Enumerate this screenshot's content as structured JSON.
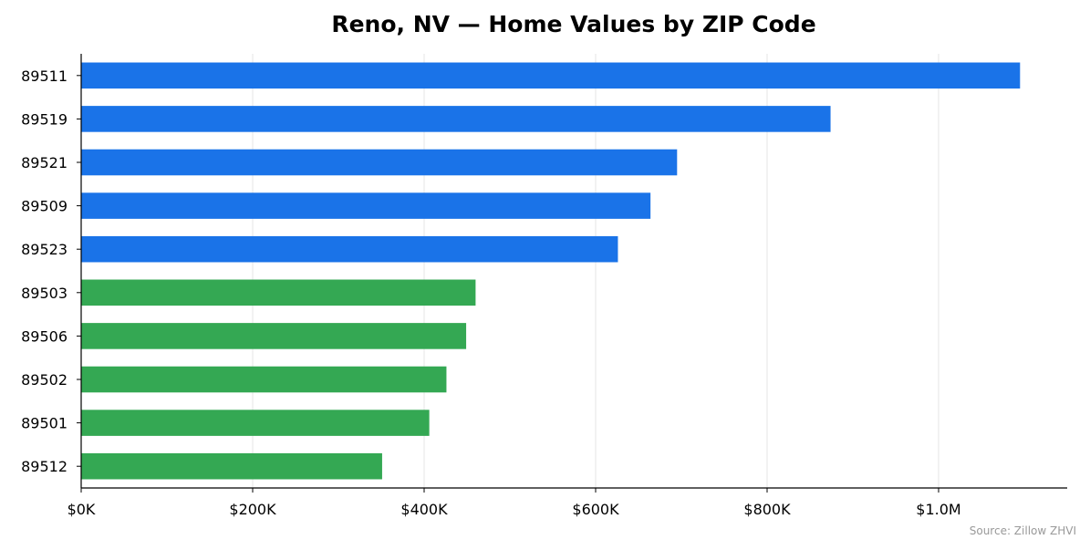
{
  "chart_data": {
    "type": "bar",
    "orientation": "horizontal",
    "title": "Reno, NV — Home Values by ZIP Code",
    "xlabel": "",
    "ylabel": "",
    "source": "Source: Zillow ZHVI",
    "xlim": [
      0,
      1150000
    ],
    "x_ticks": [
      0,
      200000,
      400000,
      600000,
      800000,
      1000000
    ],
    "x_tick_labels": [
      "$0K",
      "$200K",
      "$400K",
      "$600K",
      "$800K",
      "$1.0M"
    ],
    "grid": "vertical",
    "categories": [
      "89511",
      "89519",
      "89521",
      "89509",
      "89523",
      "89503",
      "89506",
      "89502",
      "89501",
      "89512"
    ],
    "values": [
      1095000,
      874000,
      695000,
      664000,
      626000,
      460000,
      449000,
      426000,
      406000,
      351000
    ],
    "bar_colors": [
      "#1a73e8",
      "#1a73e8",
      "#1a73e8",
      "#1a73e8",
      "#1a73e8",
      "#34a853",
      "#34a853",
      "#34a853",
      "#34a853",
      "#34a853"
    ]
  },
  "colors": {
    "high_value": "#1a73e8",
    "low_value": "#34a853",
    "grid": "#e6e6e6",
    "axis": "#000000",
    "source_text": "#999999"
  }
}
